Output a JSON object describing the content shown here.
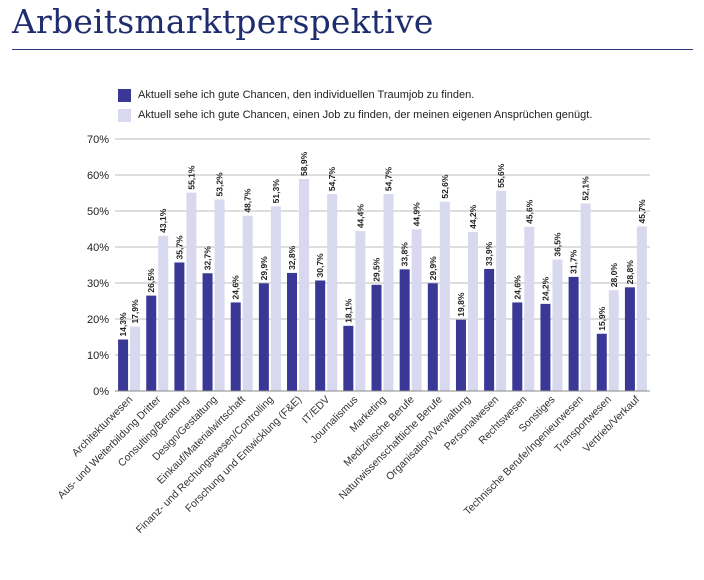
{
  "title": "Arbeitsmarktperspektive",
  "chart_data": {
    "type": "bar",
    "categories": [
      "Architekturwesen",
      "Aus- und Weiterbildung Dritter",
      "Consulting/Beratung",
      "Design/Gestaltung",
      "Einkauf/Materialwirtschaft",
      "Finanz- und Rechungswesen/Controlling",
      "Forschung und Entwicklung (F&E)",
      "IT/EDV",
      "Journalismus",
      "Marketing",
      "Medizinische Berufe",
      "Naturwissenschaftliche Berufe",
      "Organisation/Verwaltung",
      "Personalwesen",
      "Rechtswesen",
      "Sonstiges",
      "Technische Berufe/Ingenieurwesen",
      "Transportwesen",
      "Vertrieb/Verkauf"
    ],
    "series": [
      {
        "name": "Aktuell sehe ich gute Chancen, den individuellen Traumjob zu finden.",
        "color": "#3a3896",
        "values": [
          14.3,
          26.5,
          35.7,
          32.7,
          24.6,
          29.9,
          32.8,
          30.7,
          18.1,
          29.5,
          33.8,
          29.9,
          19.8,
          33.9,
          24.6,
          24.2,
          31.7,
          15.9,
          28.8
        ],
        "labels": [
          "14,3%",
          "26,5%",
          "35,7%",
          "32,7%",
          "24,6%",
          "29,9%",
          "32,8%",
          "30,7%",
          "18,1%",
          "29,5%",
          "33,8%",
          "29,9%",
          "19,8%",
          "33,9%",
          "24,6%",
          "24,2%",
          "31,7%",
          "15,9%",
          "28,8%"
        ]
      },
      {
        "name": "Aktuell sehe ich gute Chancen, einen Job zu finden, der meinen eigenen Ansprüchen genügt.",
        "color": "#d8d8ee",
        "values": [
          17.9,
          43.1,
          55.1,
          53.2,
          48.7,
          51.3,
          58.9,
          54.7,
          44.4,
          54.7,
          44.9,
          52.6,
          44.2,
          55.6,
          45.6,
          36.5,
          52.1,
          28.0,
          45.7
        ],
        "labels": [
          "17,9%",
          "43,1%",
          "55,1%",
          "53,2%",
          "48,7%",
          "51,3%",
          "58,9%",
          "54,7%",
          "44,4%",
          "54,7%",
          "44,9%",
          "52,6%",
          "44,2%",
          "55,6%",
          "45,6%",
          "36,5%",
          "52,1%",
          "28,0%",
          "45,7%"
        ]
      }
    ],
    "y_ticks": [
      "0%",
      "10%",
      "20%",
      "30%",
      "40%",
      "50%",
      "60%",
      "70%"
    ],
    "ylim": [
      0,
      70
    ],
    "grid": true,
    "legend": "top-left",
    "grid_color": "#bdbdbd"
  }
}
